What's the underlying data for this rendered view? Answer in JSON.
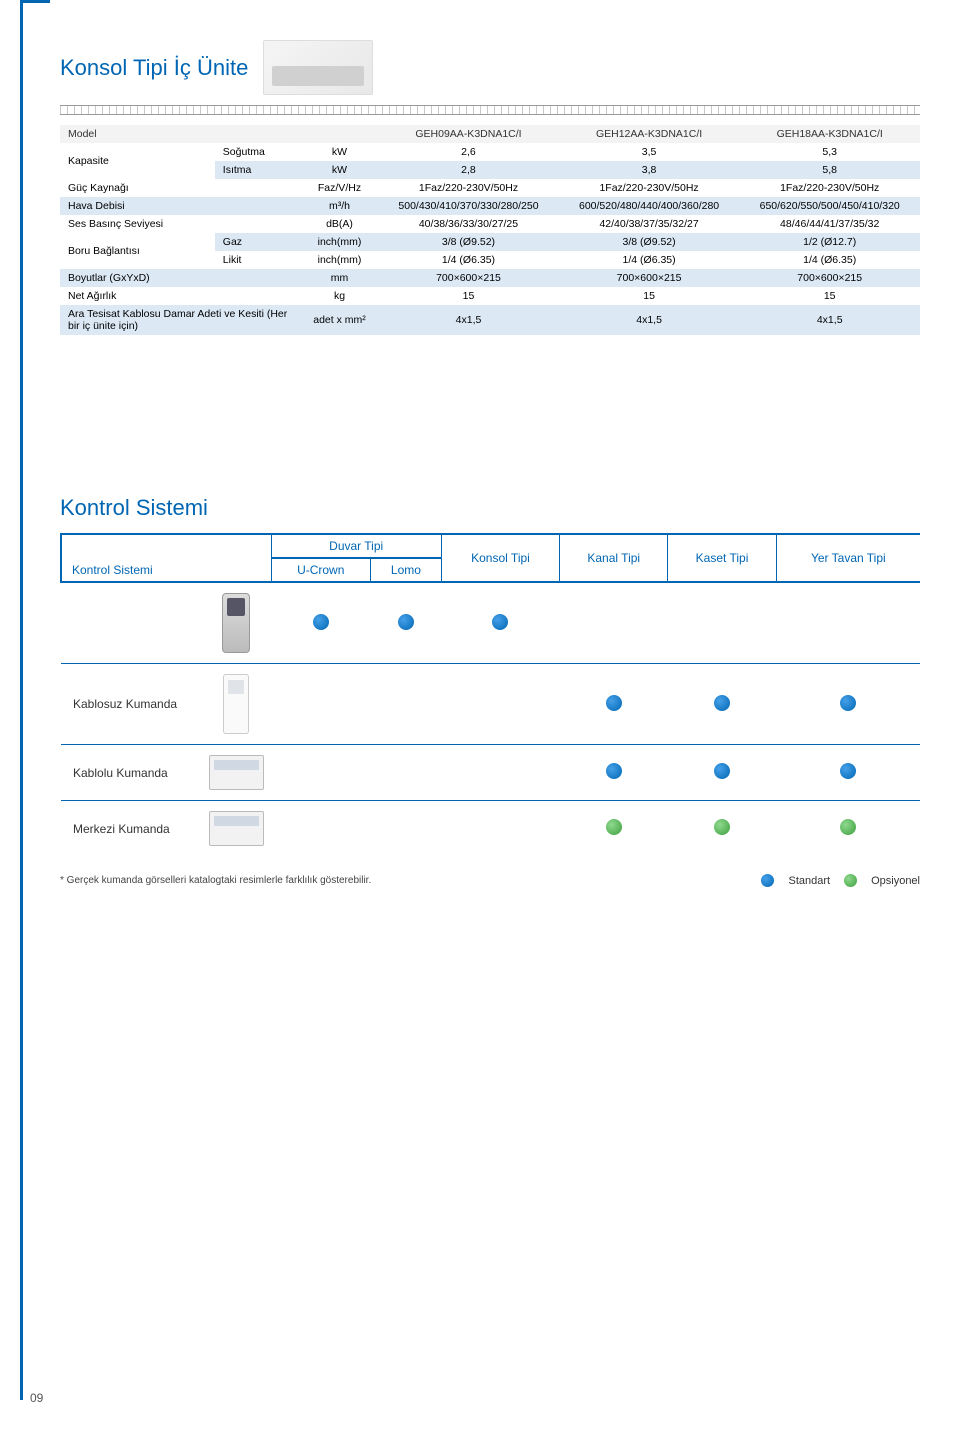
{
  "page_number": "09",
  "section1": {
    "title": "Konsol Tipi İç Ünite",
    "header_cols": [
      "GEH09AA-K3DNA1C/I",
      "GEH12AA-K3DNA1C/I",
      "GEH18AA-K3DNA1C/I"
    ],
    "model_label": "Model",
    "rows": [
      {
        "cls": "white-row",
        "l1": "Kapasite",
        "l2": "Soğutma",
        "unit": "kW",
        "v": [
          "2,6",
          "3,5",
          "5,3"
        ],
        "rowspan": 2
      },
      {
        "cls": "blue-row",
        "l1": "",
        "l2": "Isıtma",
        "unit": "kW",
        "v": [
          "2,8",
          "3,8",
          "5,8"
        ]
      },
      {
        "cls": "white-row",
        "l1": "Güç Kaynağı",
        "l2": "",
        "unit": "Faz/V/Hz",
        "v": [
          "1Faz/220-230V/50Hz",
          "1Faz/220-230V/50Hz",
          "1Faz/220-230V/50Hz"
        ],
        "span": 2
      },
      {
        "cls": "blue-row",
        "l1": "Hava Debisi",
        "l2": "",
        "unit": "m³/h",
        "v": [
          "500/430/410/370/330/280/250",
          "600/520/480/440/400/360/280",
          "650/620/550/500/450/410/320"
        ],
        "span": 2
      },
      {
        "cls": "white-row",
        "l1": "Ses Basınç Seviyesi",
        "l2": "",
        "unit": "dB(A)",
        "v": [
          "40/38/36/33/30/27/25",
          "42/40/38/37/35/32/27",
          "48/46/44/41/37/35/32"
        ],
        "span": 2
      },
      {
        "cls": "blue-row",
        "l1": "Boru Bağlantısı",
        "l2": "Gaz",
        "unit": "inch(mm)",
        "v": [
          "3/8 (Ø9.52)",
          "3/8 (Ø9.52)",
          "1/2 (Ø12.7)"
        ],
        "rowspan": 2
      },
      {
        "cls": "white-row",
        "l1": "",
        "l2": "Likit",
        "unit": "inch(mm)",
        "v": [
          "1/4 (Ø6.35)",
          "1/4 (Ø6.35)",
          "1/4 (Ø6.35)"
        ]
      },
      {
        "cls": "blue-row",
        "l1": "Boyutlar (GxYxD)",
        "l2": "",
        "unit": "mm",
        "v": [
          "700×600×215",
          "700×600×215",
          "700×600×215"
        ],
        "span": 2
      },
      {
        "cls": "white-row",
        "l1": "Net Ağırlık",
        "l2": "",
        "unit": "kg",
        "v": [
          "15",
          "15",
          "15"
        ],
        "span": 2
      },
      {
        "cls": "blue-row",
        "l1": "Ara Tesisat Kablosu Damar Adeti ve Kesiti (Her bir iç ünite için)",
        "l2": "",
        "unit": "adet x mm²",
        "v": [
          "4x1,5",
          "4x1,5",
          "4x1,5"
        ],
        "span": 2
      }
    ]
  },
  "section2": {
    "title": "Kontrol Sistemi",
    "corner_label": "Kontrol Sistemi",
    "duvar_label": "Duvar Tipi",
    "sub_cols": [
      "U-Crown",
      "Lomo"
    ],
    "top_cols": [
      "Konsol Tipi",
      "Kanal Tipi",
      "Kaset Tipi",
      "Yer Tavan Tipi"
    ],
    "rows": [
      {
        "label": "",
        "img": "remote1",
        "dots": [
          true,
          true,
          true,
          false,
          false,
          false
        ]
      },
      {
        "label": "Kablosuz Kumanda",
        "img": "remote2",
        "dots": [
          false,
          false,
          false,
          true,
          true,
          true
        ]
      },
      {
        "label": "Kablolu Kumanda",
        "img": "panel1",
        "dots": [
          false,
          false,
          false,
          true,
          true,
          true
        ]
      },
      {
        "label": "Merkezi Kumanda",
        "img": "panel2",
        "dots": [
          false,
          false,
          false,
          "g",
          "g",
          "g"
        ]
      }
    ],
    "footnote": "* Gerçek kumanda görselleri katalogtaki resimlerle farklılık gösterebilir.",
    "legend": {
      "standart": "Standart",
      "opsiyonel": "Opsiyonel"
    }
  },
  "colors": {
    "primary": "#0066b3",
    "blue_row": "#dce9f5",
    "dot_blue": "#0066b3",
    "dot_green": "#3ca03c"
  }
}
